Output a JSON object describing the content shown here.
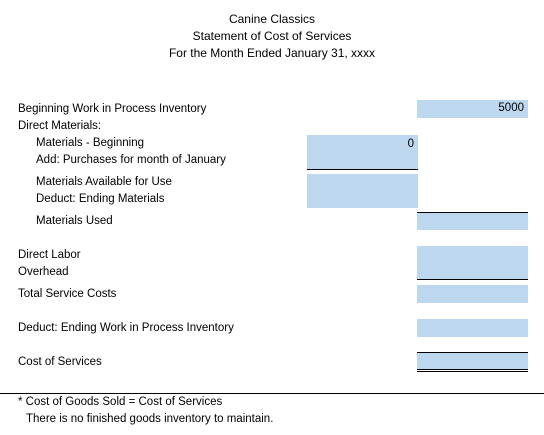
{
  "header": {
    "company": "Canine Classics",
    "statement": "Statement of Cost of Services",
    "period": "For the Month Ended January 31, xxxx"
  },
  "rows": {
    "beginning_wip": "Beginning Work in Process Inventory",
    "direct_materials": "Direct Materials:",
    "materials_beginning": "Materials - Beginning",
    "add_purchases": "Add: Purchases for month of January",
    "materials_available": "Materials Available for Use",
    "deduct_ending_materials": "Deduct: Ending Materials",
    "materials_used": "Materials Used",
    "direct_labor": "Direct Labor",
    "overhead": "Overhead",
    "total_service_costs": "Total Service Costs",
    "deduct_ending_wip": "Deduct:  Ending Work in Process Inventory",
    "cost_of_services": "Cost of Services"
  },
  "values": {
    "beginning_wip": "5000",
    "materials_beginning": "0"
  },
  "inputs": {
    "add_purchases": "",
    "materials_available": "",
    "deduct_ending_materials": "",
    "materials_used": "",
    "direct_labor": "",
    "overhead": "",
    "total_service_costs": "",
    "deduct_ending_wip": "",
    "cost_of_services": ""
  },
  "footnote": {
    "line1": "* Cost of Goods Sold = Cost of Services",
    "line2": "There is no finished goods inventory to maintain."
  },
  "colors": {
    "input_fill": "#bdd7ee"
  }
}
